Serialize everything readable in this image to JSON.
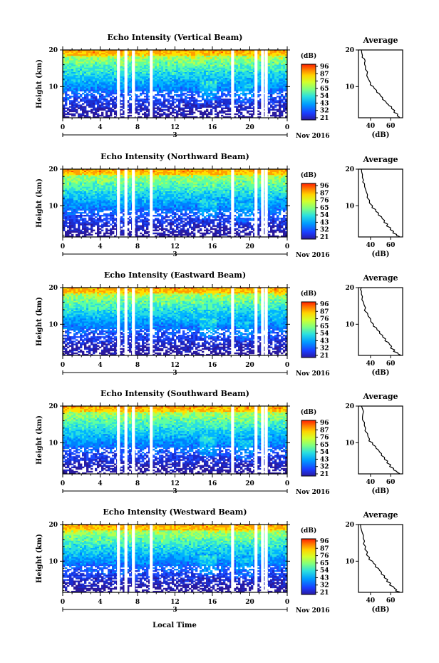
{
  "figure": {
    "xlabel": "Local Time",
    "date_label": "Nov 2016",
    "day_label": "3",
    "colorbar_unit": "(dB)",
    "avg_title": "Average",
    "avg_xlabel": "(dB)"
  },
  "colorbar": {
    "ticks": [
      "96",
      "87",
      "76",
      "65",
      "54",
      "43",
      "32",
      "21"
    ],
    "colors": [
      "#ff2a00",
      "#ff7f00",
      "#ffd400",
      "#d4ff2a",
      "#7fff7f",
      "#2affd4",
      "#00bfff",
      "#0060ff",
      "#1a1aff",
      "#2020a0"
    ]
  },
  "panels": [
    {
      "title": "Echo Intensity (Vertical Beam)",
      "ylabel": "Height (km)",
      "yticks": [
        "20",
        "10"
      ],
      "xticks": [
        "0",
        "4",
        "8",
        "12",
        "16",
        "20",
        "0"
      ],
      "avg_xticks": [
        "40",
        "60"
      ]
    },
    {
      "title": "Echo Intensity (Northward Beam)",
      "ylabel": "Height (km)",
      "yticks": [
        "20",
        "10"
      ],
      "xticks": [
        "0",
        "4",
        "8",
        "12",
        "16",
        "20",
        "0"
      ],
      "avg_xticks": [
        "40",
        "60"
      ]
    },
    {
      "title": "Echo Intensity (Eastward Beam)",
      "ylabel": "Height (km)",
      "yticks": [
        "20",
        "10"
      ],
      "xticks": [
        "0",
        "4",
        "8",
        "12",
        "16",
        "20",
        "0"
      ],
      "avg_xticks": [
        "40",
        "60"
      ]
    },
    {
      "title": "Echo Intensity (Southward Beam)",
      "ylabel": "Height (km)",
      "yticks": [
        "20",
        "10"
      ],
      "xticks": [
        "0",
        "4",
        "8",
        "12",
        "16",
        "20",
        "0"
      ],
      "avg_xticks": [
        "40",
        "60"
      ]
    },
    {
      "title": "Echo Intensity (Westward Beam)",
      "ylabel": "Height (km)",
      "yticks": [
        "20",
        "10"
      ],
      "xticks": [
        "0",
        "4",
        "8",
        "12",
        "16",
        "20",
        "0"
      ],
      "avg_xticks": [
        "40",
        "60"
      ]
    }
  ],
  "chart_data": [
    {
      "type": "heatmap",
      "title": "Echo Intensity (Vertical Beam)",
      "xlabel": "",
      "ylabel": "Height (km)",
      "xlim": [
        0,
        24
      ],
      "ylim": [
        1.5,
        20
      ],
      "colorbar_range_db": [
        21,
        96
      ],
      "data_gaps_hours": [
        5.8,
        6.6,
        7.4,
        9.3,
        18.0,
        20.5,
        21.2,
        21.6
      ]
    },
    {
      "type": "line",
      "title": "Average",
      "xlabel": "(dB)",
      "ylabel": "",
      "xlim": [
        28,
        72
      ],
      "ylim": [
        1.5,
        20
      ],
      "x": [
        31,
        32,
        34,
        34,
        35,
        37,
        38,
        40,
        43,
        46,
        49,
        52,
        55,
        58,
        61,
        64,
        67,
        69
      ],
      "y": [
        20,
        18.5,
        17.5,
        16.5,
        15.5,
        14,
        12,
        11,
        10,
        9,
        8,
        7,
        6,
        5,
        4.5,
        3.5,
        2.5,
        1.6
      ]
    },
    {
      "type": "heatmap",
      "title": "Echo Intensity (Northward Beam)",
      "xlabel": "",
      "ylabel": "Height (km)",
      "xlim": [
        0,
        24
      ],
      "ylim": [
        1.5,
        20
      ],
      "colorbar_range_db": [
        21,
        96
      ],
      "data_gaps_hours": [
        5.8,
        6.6,
        7.4,
        9.3,
        18.0,
        20.5,
        21.2,
        21.6
      ]
    },
    {
      "type": "line",
      "title": "Average",
      "xlabel": "(dB)",
      "ylabel": "",
      "xlim": [
        28,
        72
      ],
      "ylim": [
        1.5,
        20
      ],
      "x": [
        31,
        32,
        33,
        34,
        35,
        37,
        39,
        42,
        45,
        48,
        51,
        54,
        57,
        60,
        63,
        66,
        69
      ],
      "y": [
        20,
        18.5,
        17,
        16,
        14.5,
        13,
        11.5,
        10,
        9,
        8,
        7,
        6,
        5,
        4,
        3,
        2.2,
        1.6
      ]
    },
    {
      "type": "heatmap",
      "title": "Echo Intensity (Eastward Beam)",
      "xlabel": "",
      "ylabel": "Height (km)",
      "xlim": [
        0,
        24
      ],
      "ylim": [
        1.5,
        20
      ],
      "colorbar_range_db": [
        21,
        96
      ],
      "data_gaps_hours": [
        5.8,
        6.6,
        7.4,
        9.3,
        18.0,
        20.5,
        21.2,
        21.6
      ]
    },
    {
      "type": "line",
      "title": "Average",
      "xlabel": "(dB)",
      "ylabel": "",
      "xlim": [
        28,
        72
      ],
      "ylim": [
        1.5,
        20
      ],
      "x": [
        31,
        31,
        32,
        33,
        35,
        37,
        40,
        43,
        46,
        49,
        52,
        55,
        58,
        61,
        64,
        67,
        70
      ],
      "y": [
        20,
        19,
        17.5,
        16,
        14.5,
        13,
        11.5,
        10,
        9,
        8,
        7,
        6,
        5,
        4,
        3,
        2.2,
        1.6
      ]
    },
    {
      "type": "heatmap",
      "title": "Echo Intensity (Southward Beam)",
      "xlabel": "",
      "ylabel": "Height (km)",
      "xlim": [
        0,
        24
      ],
      "ylim": [
        1.5,
        20
      ],
      "colorbar_range_db": [
        21,
        96
      ],
      "data_gaps_hours": [
        5.8,
        6.6,
        7.4,
        9.3,
        18.0,
        20.5,
        21.2,
        21.6
      ]
    },
    {
      "type": "line",
      "title": "Average",
      "xlabel": "(dB)",
      "ylabel": "",
      "xlim": [
        28,
        72
      ],
      "ylim": [
        1.5,
        20
      ],
      "x": [
        31,
        33,
        32,
        34,
        35,
        37,
        39,
        42,
        45,
        48,
        51,
        54,
        57,
        60,
        63,
        66,
        69
      ],
      "y": [
        20,
        18.5,
        17,
        15.5,
        14,
        12.5,
        11,
        10,
        9,
        8,
        7,
        6,
        5,
        4,
        3,
        2.2,
        1.6
      ]
    },
    {
      "type": "heatmap",
      "title": "Echo Intensity (Westward Beam)",
      "xlabel": "Local Time",
      "ylabel": "Height (km)",
      "xlim": [
        0,
        24
      ],
      "ylim": [
        1.5,
        20
      ],
      "colorbar_range_db": [
        21,
        96
      ],
      "data_gaps_hours": [
        5.8,
        6.6,
        7.4,
        9.3,
        18.0,
        20.5,
        21.2,
        21.6
      ]
    },
    {
      "type": "line",
      "title": "Average",
      "xlabel": "(dB)",
      "ylabel": "",
      "xlim": [
        28,
        72
      ],
      "ylim": [
        1.5,
        20
      ],
      "x": [
        30,
        31,
        33,
        34,
        35,
        37,
        39,
        42,
        45,
        48,
        51,
        54,
        57,
        60,
        63,
        66,
        69
      ],
      "y": [
        20,
        18.5,
        17,
        15.5,
        14,
        12.5,
        11,
        10,
        9,
        8,
        7,
        6,
        5,
        4,
        3,
        2.2,
        1.6
      ]
    }
  ]
}
